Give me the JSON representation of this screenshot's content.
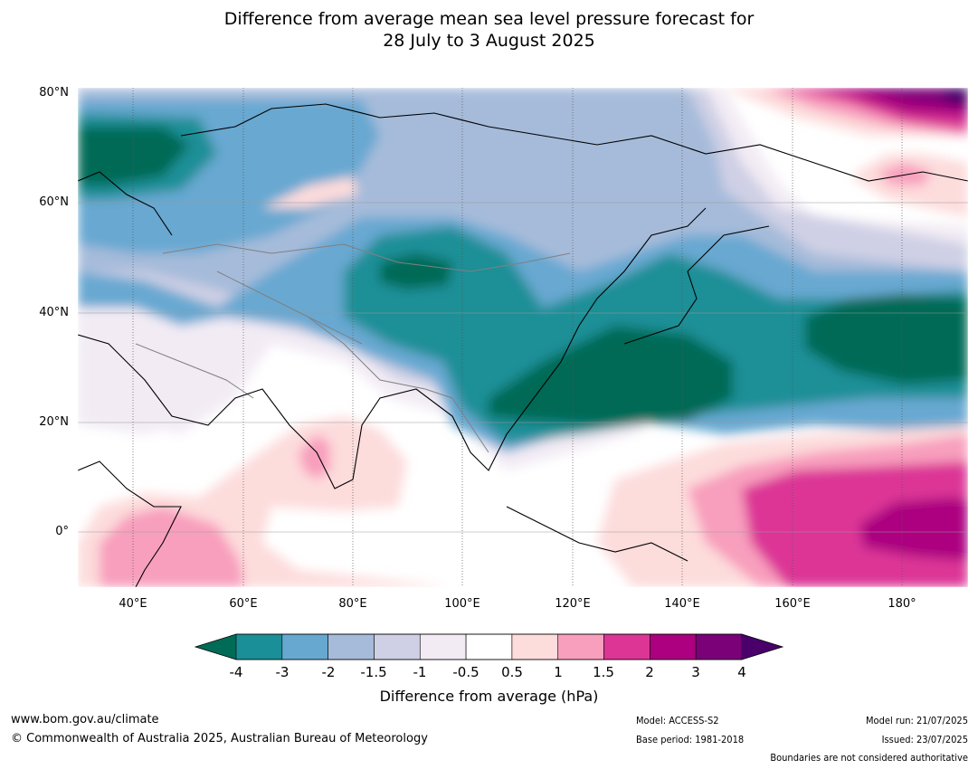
{
  "title_line1": "Difference from average mean sea level pressure forecast for",
  "title_line2": "28 July to 3 August 2025",
  "lat_labels": [
    "80°N",
    "60°N",
    "40°N",
    "20°N",
    "0°"
  ],
  "lon_labels": [
    "40°E",
    "60°E",
    "80°E",
    "100°E",
    "120°E",
    "140°E",
    "160°E",
    "180°"
  ],
  "colorbar": {
    "title": "Difference from average (hPa)",
    "ticks": [
      "-4",
      "-3",
      "-2",
      "-1.5",
      "-1",
      "-0.5",
      "0.5",
      "1",
      "1.5",
      "2",
      "3",
      "4"
    ],
    "colors": [
      "#1a8f97",
      "#67a8d1",
      "#a6bbda",
      "#cfd0e5",
      "#f2ebf4",
      "#ffffff",
      "#fddcdc",
      "#f89fbd",
      "#dc3596",
      "#ac0080",
      "#7a0177",
      "#49006a"
    ],
    "under_color": "#006b56",
    "over_color": "#49006a"
  },
  "map_colors": {
    "deep_low": "#006b56",
    "coast": "#000000",
    "border": "#808080"
  },
  "footer": {
    "website": "www.bom.gov.au/climate",
    "copyright": "© Commonwealth of Australia 2025, Australian Bureau of Meteorology",
    "model": "Model: ACCESS-S2",
    "base_period": "Base period: 1981-2018",
    "model_run": "Model run: 21/07/2025",
    "issued": "Issued: 23/07/2025",
    "disclaimer": "Boundaries are not considered authoritative"
  }
}
